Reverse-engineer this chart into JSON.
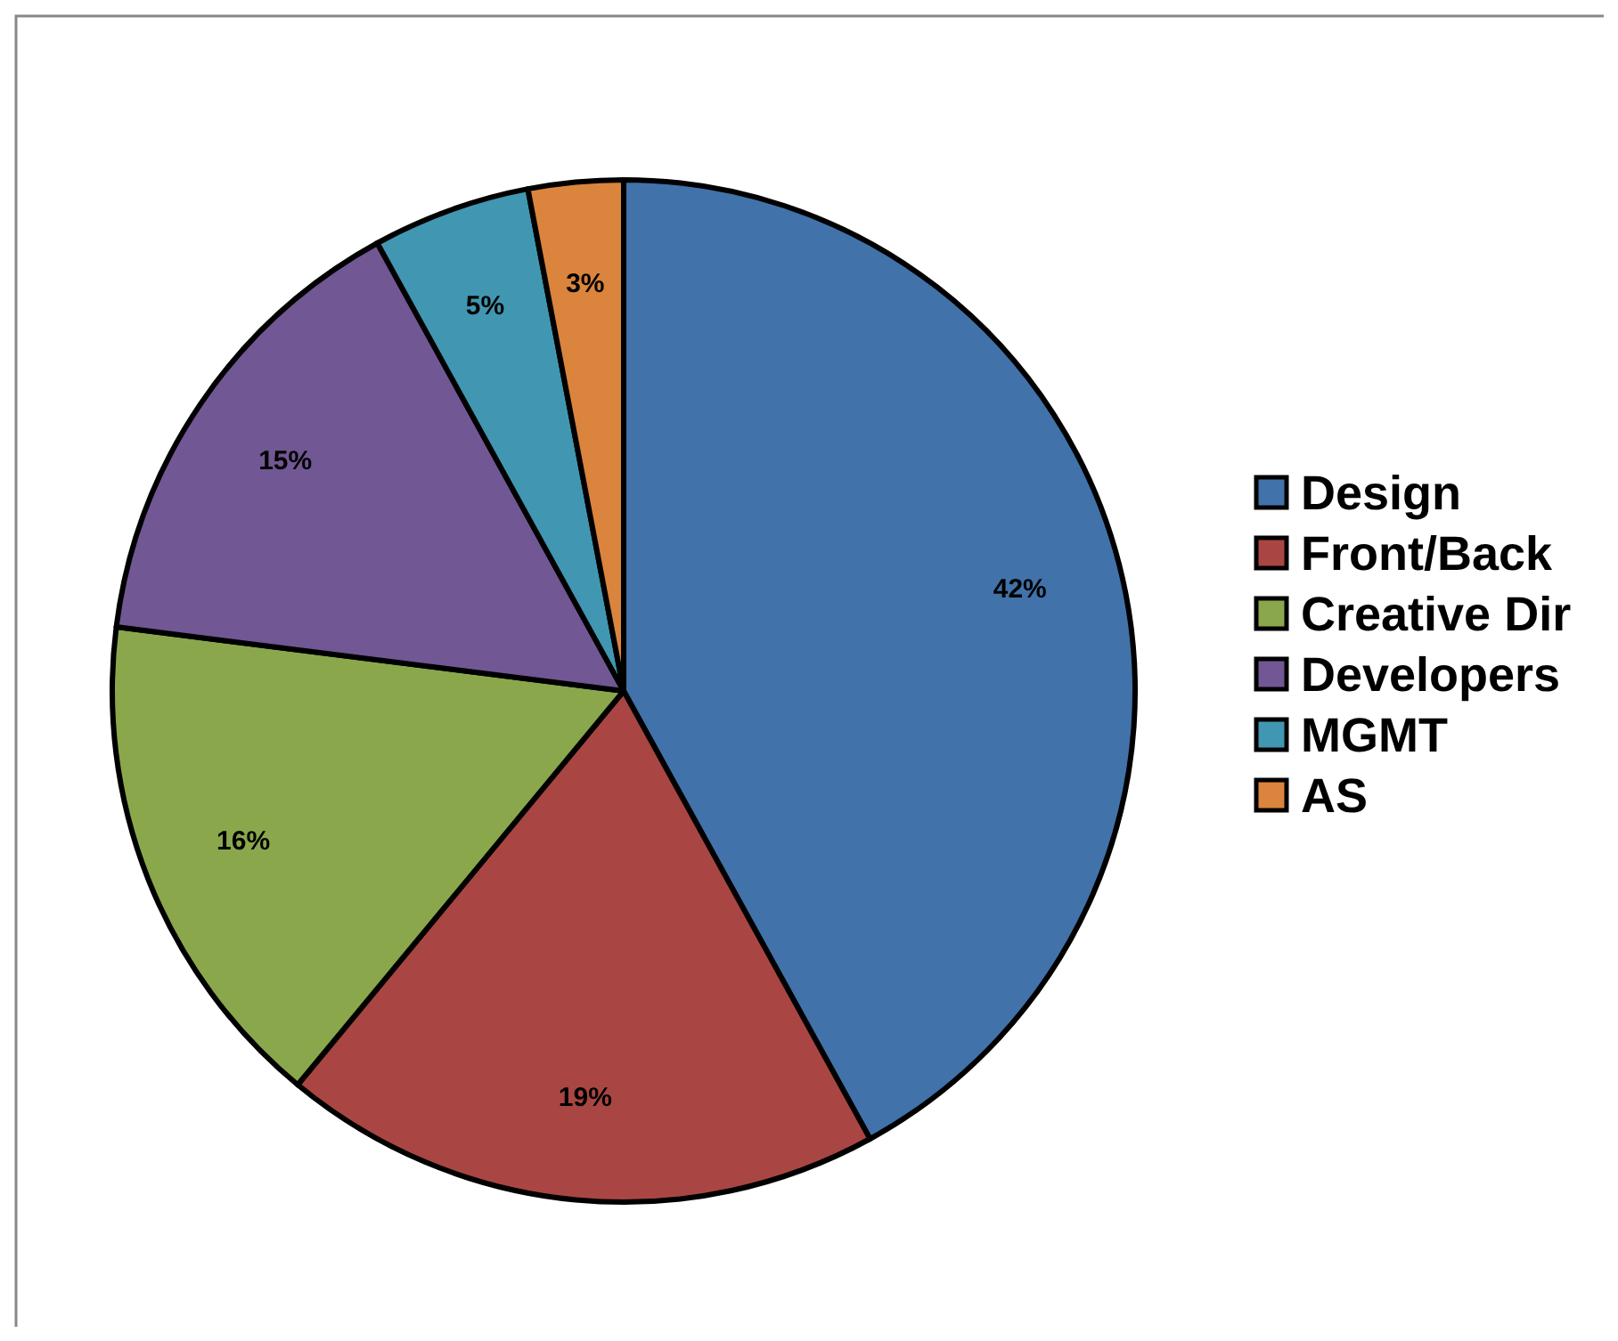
{
  "chart_data": {
    "type": "pie",
    "categories": [
      "Design",
      "Front/Back",
      "Creative Dir",
      "Developers",
      "MGMT",
      "AS"
    ],
    "values": [
      42,
      19,
      16,
      15,
      5,
      3
    ],
    "colors": [
      "#4172a9",
      "#a94643",
      "#8aa74c",
      "#715793",
      "#4197b1",
      "#db843d"
    ],
    "value_labels": [
      "42%",
      "19%",
      "16%",
      "15%",
      "5%",
      "3%"
    ],
    "legend": "right"
  }
}
